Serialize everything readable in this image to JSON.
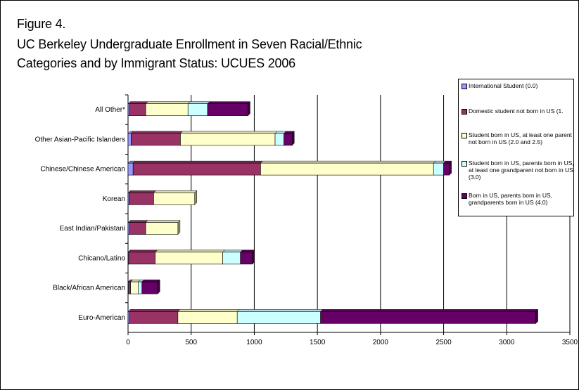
{
  "figure": {
    "number": "Figure 4.",
    "title_line1": "UC Berkeley Undergraduate Enrollment in Seven Racial/Ethnic",
    "title_line2": "Categories and by Immigrant Status: UCUES 2006"
  },
  "chart_data": {
    "type": "bar",
    "orientation": "horizontal",
    "stacked": true,
    "title": "UC Berkeley Undergraduate Enrollment in Seven Racial/Ethnic Categories and by Immigrant Status: UCUES 2006",
    "xlabel": "",
    "ylabel": "",
    "xlim": [
      0,
      3500
    ],
    "xticks": [
      0,
      500,
      1000,
      1500,
      2000,
      2500,
      3000,
      3500
    ],
    "grid": true,
    "legend_position": "right",
    "categories": [
      "All Other*",
      "Other Asian-Pacific Islanders",
      "Chinese/Chinese American",
      "Korean",
      "East Indian/Pakistani",
      "Chicano/Latino",
      "Black/African American",
      "Euro-American"
    ],
    "series": [
      {
        "name": "International Student (0.0)",
        "legend_text": "International Student (0.0)",
        "color": "#9999FF",
        "values": [
          10,
          25,
          40,
          8,
          10,
          5,
          5,
          10
        ]
      },
      {
        "name": "Domestic student not born in US (1.0)",
        "legend_text": "Domestic student not born in US (1.",
        "color": "#993366",
        "values": [
          130,
          390,
          1010,
          195,
          130,
          210,
          15,
          385
        ]
      },
      {
        "name": "Student born in US, at least one parent not born in US (2.0 and 2.5)",
        "legend_text": "Student born in US, at least one parent not born in US (2.0 and 2.5)",
        "color": "#FFFFCC",
        "values": [
          335,
          750,
          1370,
          325,
          255,
          535,
          60,
          470
        ]
      },
      {
        "name": "Student born in US, parents born in US, at least one grandparent not born in US (3.0)",
        "legend_text": "Student born in US, parents born in US, at least one grandparent not born in US (3.0)",
        "color": "#CCFFFF",
        "values": [
          155,
          70,
          80,
          0,
          0,
          140,
          30,
          660
        ]
      },
      {
        "name": "Born in US, parents born in US, grandparents born in US (4.0)",
        "legend_text": "Born in US, parents born in US, grandparents born in US (4.0)",
        "color": "#660066",
        "values": [
          320,
          65,
          45,
          0,
          0,
          95,
          125,
          1705
        ]
      }
    ]
  }
}
